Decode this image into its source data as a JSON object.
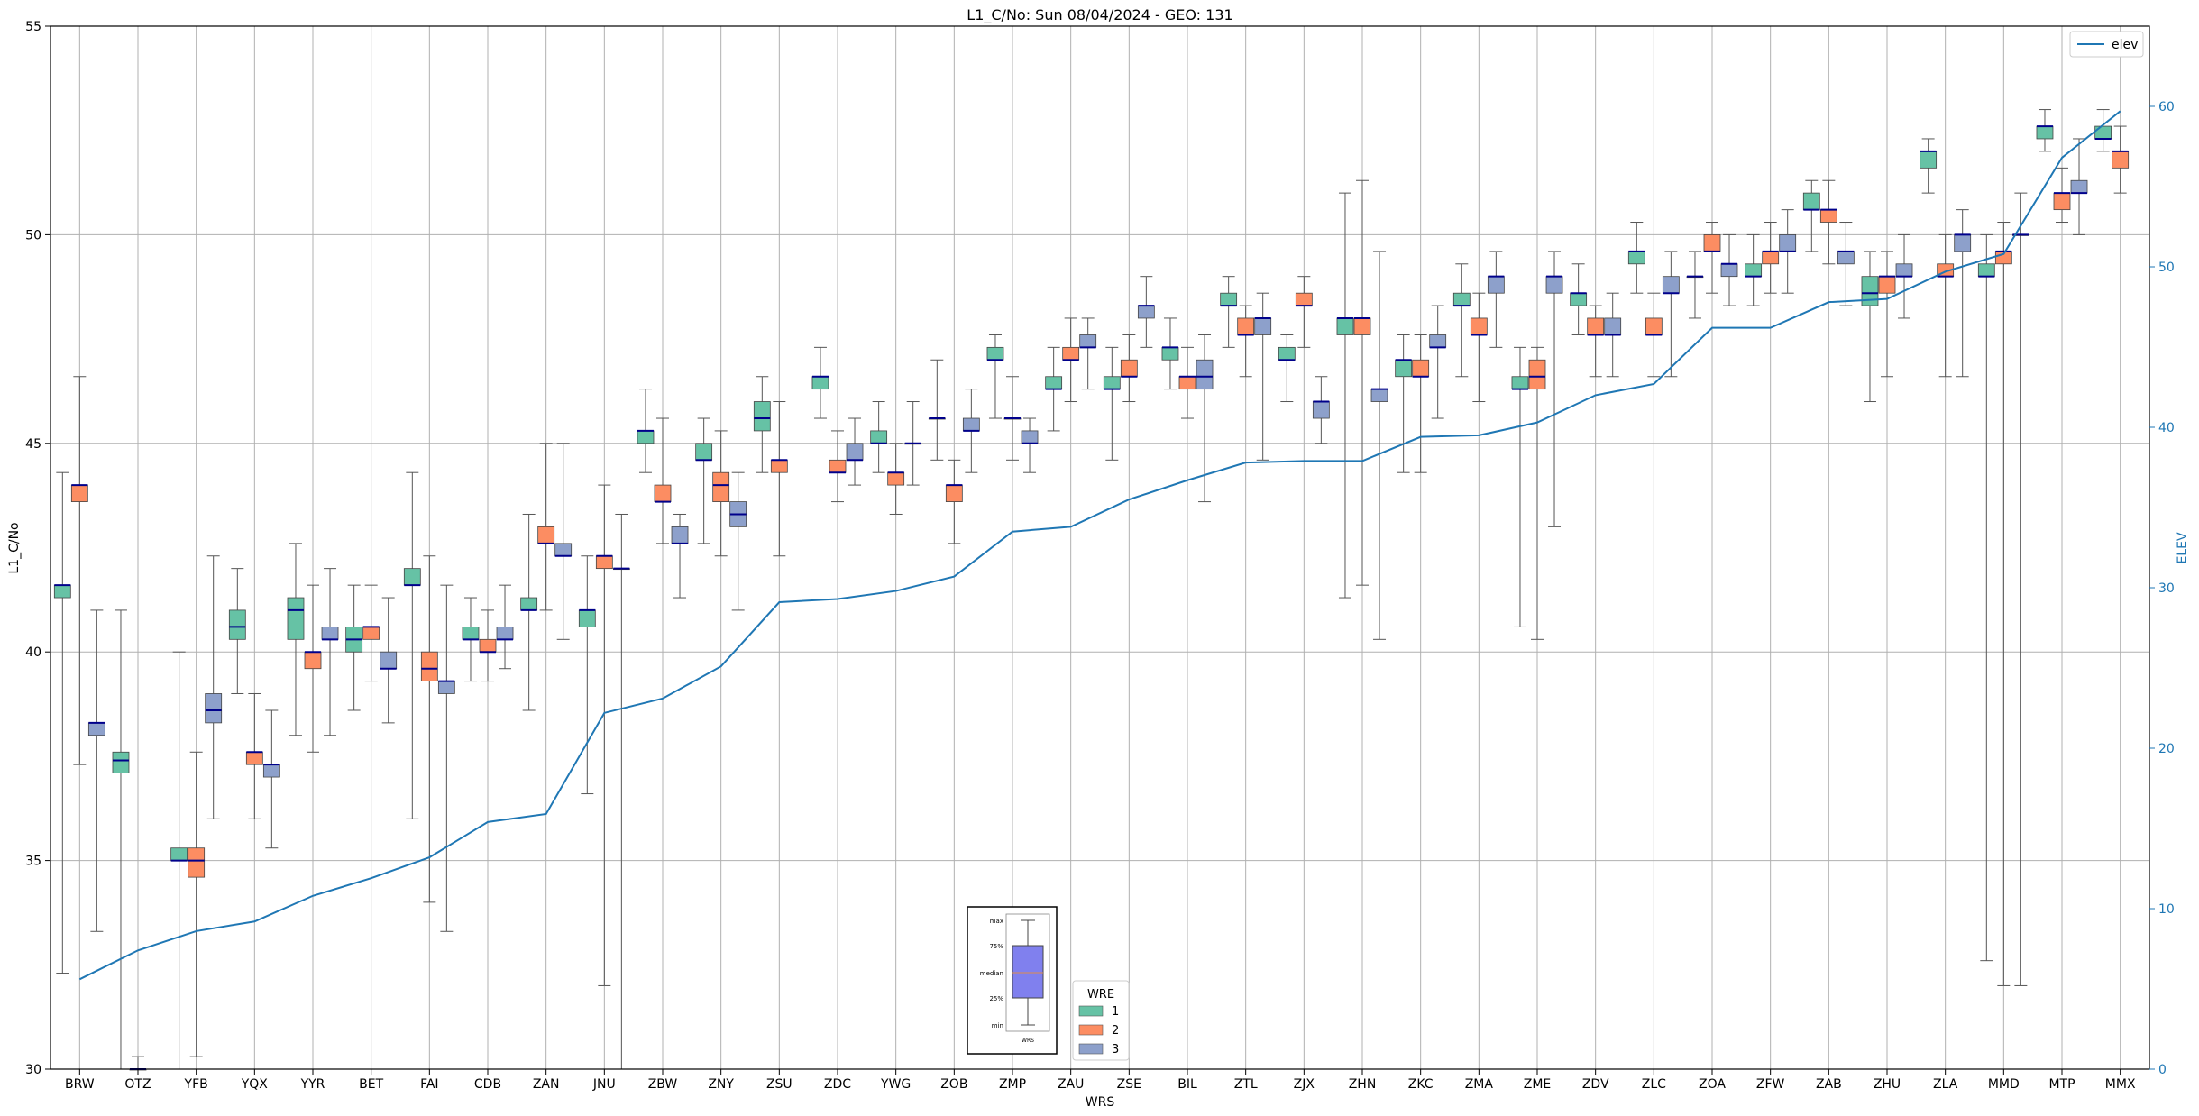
{
  "chart_data": {
    "type": "box",
    "title": "L1_C/No: Sun 08/04/2024 - GEO: 131",
    "xlabel": "WRS",
    "ylabel": "L1_C/No",
    "y2label": "ELEV",
    "ylim": [
      30,
      55
    ],
    "y2lim": [
      0,
      65
    ],
    "yticks": [
      "30",
      "35",
      "40",
      "45",
      "50",
      "55"
    ],
    "y2ticks": [
      "0",
      "10",
      "20",
      "30",
      "40",
      "50",
      "60"
    ],
    "grid": true,
    "categories": [
      "BRW",
      "OTZ",
      "YFB",
      "YQX",
      "YYR",
      "BET",
      "FAI",
      "CDB",
      "ZAN",
      "JNU",
      "ZBW",
      "ZNY",
      "ZSU",
      "ZDC",
      "YWG",
      "ZOB",
      "ZMP",
      "ZAU",
      "ZSE",
      "BIL",
      "ZTL",
      "ZJX",
      "ZHN",
      "ZKC",
      "ZMA",
      "ZME",
      "ZDV",
      "ZLC",
      "ZOA",
      "ZFW",
      "ZAB",
      "ZHU",
      "ZLA",
      "MMD",
      "MTP",
      "MMX"
    ],
    "legend": {
      "title": "WRE",
      "placement": "bottom-center",
      "entries": [
        "1",
        "2",
        "3"
      ]
    },
    "line_legend": {
      "label": "elev",
      "placement": "top-right"
    },
    "colors": {
      "1": "#66c2a5",
      "2": "#fc8d62",
      "3": "#8da0cb",
      "elev": "#1f77b4",
      "median": "#00008b",
      "whisker": "#555555"
    },
    "explainer": {
      "labels": [
        "max",
        "75%",
        "median",
        "25%",
        "min"
      ],
      "xlabel": "WRS"
    },
    "elev": [
      5.6,
      7.4,
      8.6,
      9.2,
      10.8,
      11.9,
      13.2,
      15.4,
      15.9,
      22.2,
      23.1,
      25.1,
      29.1,
      29.3,
      29.8,
      30.7,
      33.5,
      33.8,
      35.5,
      36.7,
      37.8,
      37.9,
      37.9,
      39.4,
      39.5,
      40.3,
      42.0,
      42.7,
      46.2,
      46.2,
      47.8,
      48.0,
      49.7,
      50.8,
      56.8,
      59.7
    ],
    "boxes": [
      {
        "site": "BRW",
        "wre": "1",
        "min": 32.3,
        "q1": 41.3,
        "median": 41.6,
        "q3": 41.6,
        "max": 44.3
      },
      {
        "site": "BRW",
        "wre": "2",
        "min": 37.3,
        "q1": 43.6,
        "median": 44.0,
        "q3": 44.0,
        "max": 46.6
      },
      {
        "site": "BRW",
        "wre": "3",
        "min": 33.3,
        "q1": 38.0,
        "median": 38.3,
        "q3": 38.3,
        "max": 41.0
      },
      {
        "site": "OTZ",
        "wre": "1",
        "min": 30.0,
        "q1": 37.1,
        "median": 37.4,
        "q3": 37.6,
        "max": 41.0
      },
      {
        "site": "OTZ",
        "wre": "2",
        "min": 30.0,
        "q1": 30.0,
        "median": 30.0,
        "q3": 30.0,
        "max": 30.3
      },
      {
        "site": "YFB",
        "wre": "1",
        "min": 30.0,
        "q1": 35.0,
        "median": 35.0,
        "q3": 35.3,
        "max": 40.0
      },
      {
        "site": "YFB",
        "wre": "2",
        "min": 30.3,
        "q1": 34.6,
        "median": 35.0,
        "q3": 35.3,
        "max": 37.6
      },
      {
        "site": "YFB",
        "wre": "3",
        "min": 36.0,
        "q1": 38.3,
        "median": 38.6,
        "q3": 39.0,
        "max": 42.3
      },
      {
        "site": "YQX",
        "wre": "1",
        "min": 39.0,
        "q1": 40.3,
        "median": 40.6,
        "q3": 41.0,
        "max": 42.0
      },
      {
        "site": "YQX",
        "wre": "2",
        "min": 36.0,
        "q1": 37.3,
        "median": 37.6,
        "q3": 37.6,
        "max": 39.0
      },
      {
        "site": "YQX",
        "wre": "3",
        "min": 35.3,
        "q1": 37.0,
        "median": 37.3,
        "q3": 37.3,
        "max": 38.6
      },
      {
        "site": "YYR",
        "wre": "1",
        "min": 38.0,
        "q1": 40.3,
        "median": 41.0,
        "q3": 41.3,
        "max": 42.6
      },
      {
        "site": "YYR",
        "wre": "2",
        "min": 37.6,
        "q1": 39.6,
        "median": 40.0,
        "q3": 40.0,
        "max": 41.6
      },
      {
        "site": "YYR",
        "wre": "3",
        "min": 38.0,
        "q1": 40.3,
        "median": 40.3,
        "q3": 40.6,
        "max": 42.0
      },
      {
        "site": "BET",
        "wre": "1",
        "min": 38.6,
        "q1": 40.0,
        "median": 40.3,
        "q3": 40.6,
        "max": 41.6
      },
      {
        "site": "BET",
        "wre": "2",
        "min": 39.3,
        "q1": 40.3,
        "median": 40.6,
        "q3": 40.6,
        "max": 41.6
      },
      {
        "site": "BET",
        "wre": "3",
        "min": 38.3,
        "q1": 39.6,
        "median": 39.6,
        "q3": 40.0,
        "max": 41.3
      },
      {
        "site": "FAI",
        "wre": "1",
        "min": 36.0,
        "q1": 41.6,
        "median": 41.6,
        "q3": 42.0,
        "max": 44.3
      },
      {
        "site": "FAI",
        "wre": "2",
        "min": 34.0,
        "q1": 39.3,
        "median": 39.6,
        "q3": 40.0,
        "max": 42.3
      },
      {
        "site": "FAI",
        "wre": "3",
        "min": 33.3,
        "q1": 39.0,
        "median": 39.3,
        "q3": 39.3,
        "max": 41.6
      },
      {
        "site": "CDB",
        "wre": "1",
        "min": 39.3,
        "q1": 40.3,
        "median": 40.3,
        "q3": 40.6,
        "max": 41.3
      },
      {
        "site": "CDB",
        "wre": "2",
        "min": 39.3,
        "q1": 40.0,
        "median": 40.0,
        "q3": 40.3,
        "max": 41.0
      },
      {
        "site": "CDB",
        "wre": "3",
        "min": 39.6,
        "q1": 40.3,
        "median": 40.3,
        "q3": 40.6,
        "max": 41.6
      },
      {
        "site": "ZAN",
        "wre": "1",
        "min": 38.6,
        "q1": 41.0,
        "median": 41.0,
        "q3": 41.3,
        "max": 43.3
      },
      {
        "site": "ZAN",
        "wre": "2",
        "min": 41.0,
        "q1": 42.6,
        "median": 42.6,
        "q3": 43.0,
        "max": 45.0
      },
      {
        "site": "ZAN",
        "wre": "3",
        "min": 40.3,
        "q1": 42.3,
        "median": 42.3,
        "q3": 42.6,
        "max": 45.0
      },
      {
        "site": "JNU",
        "wre": "1",
        "min": 36.6,
        "q1": 40.6,
        "median": 41.0,
        "q3": 41.0,
        "max": 42.3
      },
      {
        "site": "JNU",
        "wre": "2",
        "min": 32.0,
        "q1": 42.0,
        "median": 42.3,
        "q3": 42.3,
        "max": 44.0
      },
      {
        "site": "JNU",
        "wre": "3",
        "min": 30.0,
        "q1": 42.0,
        "median": 42.0,
        "q3": 42.0,
        "max": 43.3
      },
      {
        "site": "ZBW",
        "wre": "1",
        "min": 44.3,
        "q1": 45.0,
        "median": 45.3,
        "q3": 45.3,
        "max": 46.3
      },
      {
        "site": "ZBW",
        "wre": "2",
        "min": 42.6,
        "q1": 43.6,
        "median": 43.6,
        "q3": 44.0,
        "max": 45.6
      },
      {
        "site": "ZBW",
        "wre": "3",
        "min": 41.3,
        "q1": 42.6,
        "median": 42.6,
        "q3": 43.0,
        "max": 43.3
      },
      {
        "site": "ZNY",
        "wre": "1",
        "min": 42.6,
        "q1": 44.6,
        "median": 44.6,
        "q3": 45.0,
        "max": 45.6
      },
      {
        "site": "ZNY",
        "wre": "2",
        "min": 42.3,
        "q1": 43.6,
        "median": 44.0,
        "q3": 44.3,
        "max": 45.3
      },
      {
        "site": "ZNY",
        "wre": "3",
        "min": 41.0,
        "q1": 43.0,
        "median": 43.3,
        "q3": 43.6,
        "max": 44.3
      },
      {
        "site": "ZSU",
        "wre": "1",
        "min": 44.3,
        "q1": 45.3,
        "median": 45.6,
        "q3": 46.0,
        "max": 46.6
      },
      {
        "site": "ZSU",
        "wre": "2",
        "min": 42.3,
        "q1": 44.3,
        "median": 44.6,
        "q3": 44.6,
        "max": 46.0
      },
      {
        "site": "ZDC",
        "wre": "1",
        "min": 45.6,
        "q1": 46.3,
        "median": 46.6,
        "q3": 46.6,
        "max": 47.3
      },
      {
        "site": "ZDC",
        "wre": "2",
        "min": 43.6,
        "q1": 44.3,
        "median": 44.3,
        "q3": 44.6,
        "max": 45.3
      },
      {
        "site": "ZDC",
        "wre": "3",
        "min": 44.0,
        "q1": 44.6,
        "median": 44.6,
        "q3": 45.0,
        "max": 45.6
      },
      {
        "site": "YWG",
        "wre": "1",
        "min": 44.3,
        "q1": 45.0,
        "median": 45.0,
        "q3": 45.3,
        "max": 46.0
      },
      {
        "site": "YWG",
        "wre": "2",
        "min": 43.3,
        "q1": 44.0,
        "median": 44.3,
        "q3": 44.3,
        "max": 45.0
      },
      {
        "site": "YWG",
        "wre": "3",
        "min": 44.0,
        "q1": 45.0,
        "median": 45.0,
        "q3": 45.0,
        "max": 46.0
      },
      {
        "site": "ZOB",
        "wre": "1",
        "min": 44.6,
        "q1": 45.6,
        "median": 45.6,
        "q3": 45.6,
        "max": 47.0
      },
      {
        "site": "ZOB",
        "wre": "2",
        "min": 42.6,
        "q1": 43.6,
        "median": 44.0,
        "q3": 44.0,
        "max": 44.6
      },
      {
        "site": "ZOB",
        "wre": "3",
        "min": 44.3,
        "q1": 45.3,
        "median": 45.3,
        "q3": 45.6,
        "max": 46.3
      },
      {
        "site": "ZMP",
        "wre": "1",
        "min": 45.6,
        "q1": 47.0,
        "median": 47.0,
        "q3": 47.3,
        "max": 47.6
      },
      {
        "site": "ZMP",
        "wre": "2",
        "min": 44.6,
        "q1": 45.6,
        "median": 45.6,
        "q3": 45.6,
        "max": 46.6
      },
      {
        "site": "ZMP",
        "wre": "3",
        "min": 44.3,
        "q1": 45.0,
        "median": 45.0,
        "q3": 45.3,
        "max": 45.6
      },
      {
        "site": "ZAU",
        "wre": "1",
        "min": 45.3,
        "q1": 46.3,
        "median": 46.3,
        "q3": 46.6,
        "max": 47.3
      },
      {
        "site": "ZAU",
        "wre": "2",
        "min": 46.0,
        "q1": 47.0,
        "median": 47.0,
        "q3": 47.3,
        "max": 48.0
      },
      {
        "site": "ZAU",
        "wre": "3",
        "min": 46.3,
        "q1": 47.3,
        "median": 47.3,
        "q3": 47.6,
        "max": 48.0
      },
      {
        "site": "ZSE",
        "wre": "1",
        "min": 44.6,
        "q1": 46.3,
        "median": 46.3,
        "q3": 46.6,
        "max": 47.3
      },
      {
        "site": "ZSE",
        "wre": "2",
        "min": 46.0,
        "q1": 46.6,
        "median": 46.6,
        "q3": 47.0,
        "max": 47.6
      },
      {
        "site": "ZSE",
        "wre": "3",
        "min": 47.3,
        "q1": 48.0,
        "median": 48.3,
        "q3": 48.3,
        "max": 49.0
      },
      {
        "site": "BIL",
        "wre": "1",
        "min": 46.3,
        "q1": 47.0,
        "median": 47.3,
        "q3": 47.3,
        "max": 48.0
      },
      {
        "site": "BIL",
        "wre": "2",
        "min": 45.6,
        "q1": 46.3,
        "median": 46.6,
        "q3": 46.6,
        "max": 47.3
      },
      {
        "site": "BIL",
        "wre": "3",
        "min": 43.6,
        "q1": 46.3,
        "median": 46.6,
        "q3": 47.0,
        "max": 47.6
      },
      {
        "site": "ZTL",
        "wre": "1",
        "min": 47.3,
        "q1": 48.3,
        "median": 48.3,
        "q3": 48.6,
        "max": 49.0
      },
      {
        "site": "ZTL",
        "wre": "2",
        "min": 46.6,
        "q1": 47.6,
        "median": 47.6,
        "q3": 48.0,
        "max": 48.3
      },
      {
        "site": "ZTL",
        "wre": "3",
        "min": 44.6,
        "q1": 47.6,
        "median": 48.0,
        "q3": 48.0,
        "max": 48.6
      },
      {
        "site": "ZJX",
        "wre": "1",
        "min": 46.0,
        "q1": 47.0,
        "median": 47.0,
        "q3": 47.3,
        "max": 47.6
      },
      {
        "site": "ZJX",
        "wre": "2",
        "min": 47.3,
        "q1": 48.3,
        "median": 48.3,
        "q3": 48.6,
        "max": 49.0
      },
      {
        "site": "ZJX",
        "wre": "3",
        "min": 45.0,
        "q1": 45.6,
        "median": 46.0,
        "q3": 46.0,
        "max": 46.6
      },
      {
        "site": "ZHN",
        "wre": "1",
        "min": 41.3,
        "q1": 47.6,
        "median": 48.0,
        "q3": 48.0,
        "max": 51.0
      },
      {
        "site": "ZHN",
        "wre": "2",
        "min": 41.6,
        "q1": 47.6,
        "median": 48.0,
        "q3": 48.0,
        "max": 51.3
      },
      {
        "site": "ZHN",
        "wre": "3",
        "min": 40.3,
        "q1": 46.0,
        "median": 46.3,
        "q3": 46.3,
        "max": 49.6
      },
      {
        "site": "ZKC",
        "wre": "1",
        "min": 44.3,
        "q1": 46.6,
        "median": 47.0,
        "q3": 47.0,
        "max": 47.6
      },
      {
        "site": "ZKC",
        "wre": "2",
        "min": 44.3,
        "q1": 46.6,
        "median": 46.6,
        "q3": 47.0,
        "max": 47.6
      },
      {
        "site": "ZKC",
        "wre": "3",
        "min": 45.6,
        "q1": 47.3,
        "median": 47.3,
        "q3": 47.6,
        "max": 48.3
      },
      {
        "site": "ZMA",
        "wre": "1",
        "min": 46.6,
        "q1": 48.3,
        "median": 48.3,
        "q3": 48.6,
        "max": 49.3
      },
      {
        "site": "ZMA",
        "wre": "2",
        "min": 46.0,
        "q1": 47.6,
        "median": 47.6,
        "q3": 48.0,
        "max": 48.6
      },
      {
        "site": "ZMA",
        "wre": "3",
        "min": 47.3,
        "q1": 48.6,
        "median": 49.0,
        "q3": 49.0,
        "max": 49.6
      },
      {
        "site": "ZME",
        "wre": "1",
        "min": 40.6,
        "q1": 46.3,
        "median": 46.3,
        "q3": 46.6,
        "max": 47.3
      },
      {
        "site": "ZME",
        "wre": "2",
        "min": 40.3,
        "q1": 46.3,
        "median": 46.6,
        "q3": 47.0,
        "max": 47.3
      },
      {
        "site": "ZME",
        "wre": "3",
        "min": 43.0,
        "q1": 48.6,
        "median": 49.0,
        "q3": 49.0,
        "max": 49.6
      },
      {
        "site": "ZDV",
        "wre": "1",
        "min": 47.6,
        "q1": 48.3,
        "median": 48.6,
        "q3": 48.6,
        "max": 49.3
      },
      {
        "site": "ZDV",
        "wre": "2",
        "min": 46.6,
        "q1": 47.6,
        "median": 47.6,
        "q3": 48.0,
        "max": 48.3
      },
      {
        "site": "ZDV",
        "wre": "3",
        "min": 46.6,
        "q1": 47.6,
        "median": 47.6,
        "q3": 48.0,
        "max": 48.6
      },
      {
        "site": "ZLC",
        "wre": "1",
        "min": 48.6,
        "q1": 49.3,
        "median": 49.6,
        "q3": 49.6,
        "max": 50.3
      },
      {
        "site": "ZLC",
        "wre": "2",
        "min": 46.6,
        "q1": 47.6,
        "median": 47.6,
        "q3": 48.0,
        "max": 48.6
      },
      {
        "site": "ZLC",
        "wre": "3",
        "min": 46.6,
        "q1": 48.6,
        "median": 48.6,
        "q3": 49.0,
        "max": 49.6
      },
      {
        "site": "ZOA",
        "wre": "1",
        "min": 48.0,
        "q1": 49.0,
        "median": 49.0,
        "q3": 49.0,
        "max": 49.6
      },
      {
        "site": "ZOA",
        "wre": "2",
        "min": 48.6,
        "q1": 49.6,
        "median": 49.6,
        "q3": 50.0,
        "max": 50.3
      },
      {
        "site": "ZOA",
        "wre": "3",
        "min": 48.3,
        "q1": 49.0,
        "median": 49.3,
        "q3": 49.3,
        "max": 50.0
      },
      {
        "site": "ZFW",
        "wre": "1",
        "min": 48.3,
        "q1": 49.0,
        "median": 49.0,
        "q3": 49.3,
        "max": 50.0
      },
      {
        "site": "ZFW",
        "wre": "2",
        "min": 48.6,
        "q1": 49.3,
        "median": 49.6,
        "q3": 49.6,
        "max": 50.3
      },
      {
        "site": "ZFW",
        "wre": "3",
        "min": 48.6,
        "q1": 49.6,
        "median": 49.6,
        "q3": 50.0,
        "max": 50.6
      },
      {
        "site": "ZAB",
        "wre": "1",
        "min": 49.6,
        "q1": 50.6,
        "median": 50.6,
        "q3": 51.0,
        "max": 51.3
      },
      {
        "site": "ZAB",
        "wre": "2",
        "min": 49.3,
        "q1": 50.3,
        "median": 50.6,
        "q3": 50.6,
        "max": 51.3
      },
      {
        "site": "ZAB",
        "wre": "3",
        "min": 48.3,
        "q1": 49.3,
        "median": 49.6,
        "q3": 49.6,
        "max": 50.3
      },
      {
        "site": "ZHU",
        "wre": "1",
        "min": 46.0,
        "q1": 48.3,
        "median": 48.6,
        "q3": 49.0,
        "max": 49.6
      },
      {
        "site": "ZHU",
        "wre": "2",
        "min": 46.6,
        "q1": 48.6,
        "median": 49.0,
        "q3": 49.0,
        "max": 49.6
      },
      {
        "site": "ZHU",
        "wre": "3",
        "min": 48.0,
        "q1": 49.0,
        "median": 49.0,
        "q3": 49.3,
        "max": 50.0
      },
      {
        "site": "ZLA",
        "wre": "1",
        "min": 51.0,
        "q1": 51.6,
        "median": 52.0,
        "q3": 52.0,
        "max": 52.3
      },
      {
        "site": "ZLA",
        "wre": "2",
        "min": 46.6,
        "q1": 49.0,
        "median": 49.0,
        "q3": 49.3,
        "max": 50.0
      },
      {
        "site": "ZLA",
        "wre": "3",
        "min": 46.6,
        "q1": 49.6,
        "median": 50.0,
        "q3": 50.0,
        "max": 50.6
      },
      {
        "site": "MMD",
        "wre": "1",
        "min": 32.6,
        "q1": 49.0,
        "median": 49.0,
        "q3": 49.3,
        "max": 50.0
      },
      {
        "site": "MMD",
        "wre": "2",
        "min": 32.0,
        "q1": 49.3,
        "median": 49.6,
        "q3": 49.6,
        "max": 50.3
      },
      {
        "site": "MMD",
        "wre": "3",
        "min": 32.0,
        "q1": 50.0,
        "median": 50.0,
        "q3": 50.0,
        "max": 51.0
      },
      {
        "site": "MTP",
        "wre": "1",
        "min": 52.0,
        "q1": 52.3,
        "median": 52.6,
        "q3": 52.6,
        "max": 53.0
      },
      {
        "site": "MTP",
        "wre": "2",
        "min": 50.3,
        "q1": 50.6,
        "median": 51.0,
        "q3": 51.0,
        "max": 51.6
      },
      {
        "site": "MTP",
        "wre": "3",
        "min": 50.0,
        "q1": 51.0,
        "median": 51.0,
        "q3": 51.3,
        "max": 52.3
      },
      {
        "site": "MMX",
        "wre": "1",
        "min": 52.0,
        "q1": 52.3,
        "median": 52.3,
        "q3": 52.6,
        "max": 53.0
      },
      {
        "site": "MMX",
        "wre": "2",
        "min": 51.0,
        "q1": 51.6,
        "median": 52.0,
        "q3": 52.0,
        "max": 52.6
      }
    ]
  }
}
